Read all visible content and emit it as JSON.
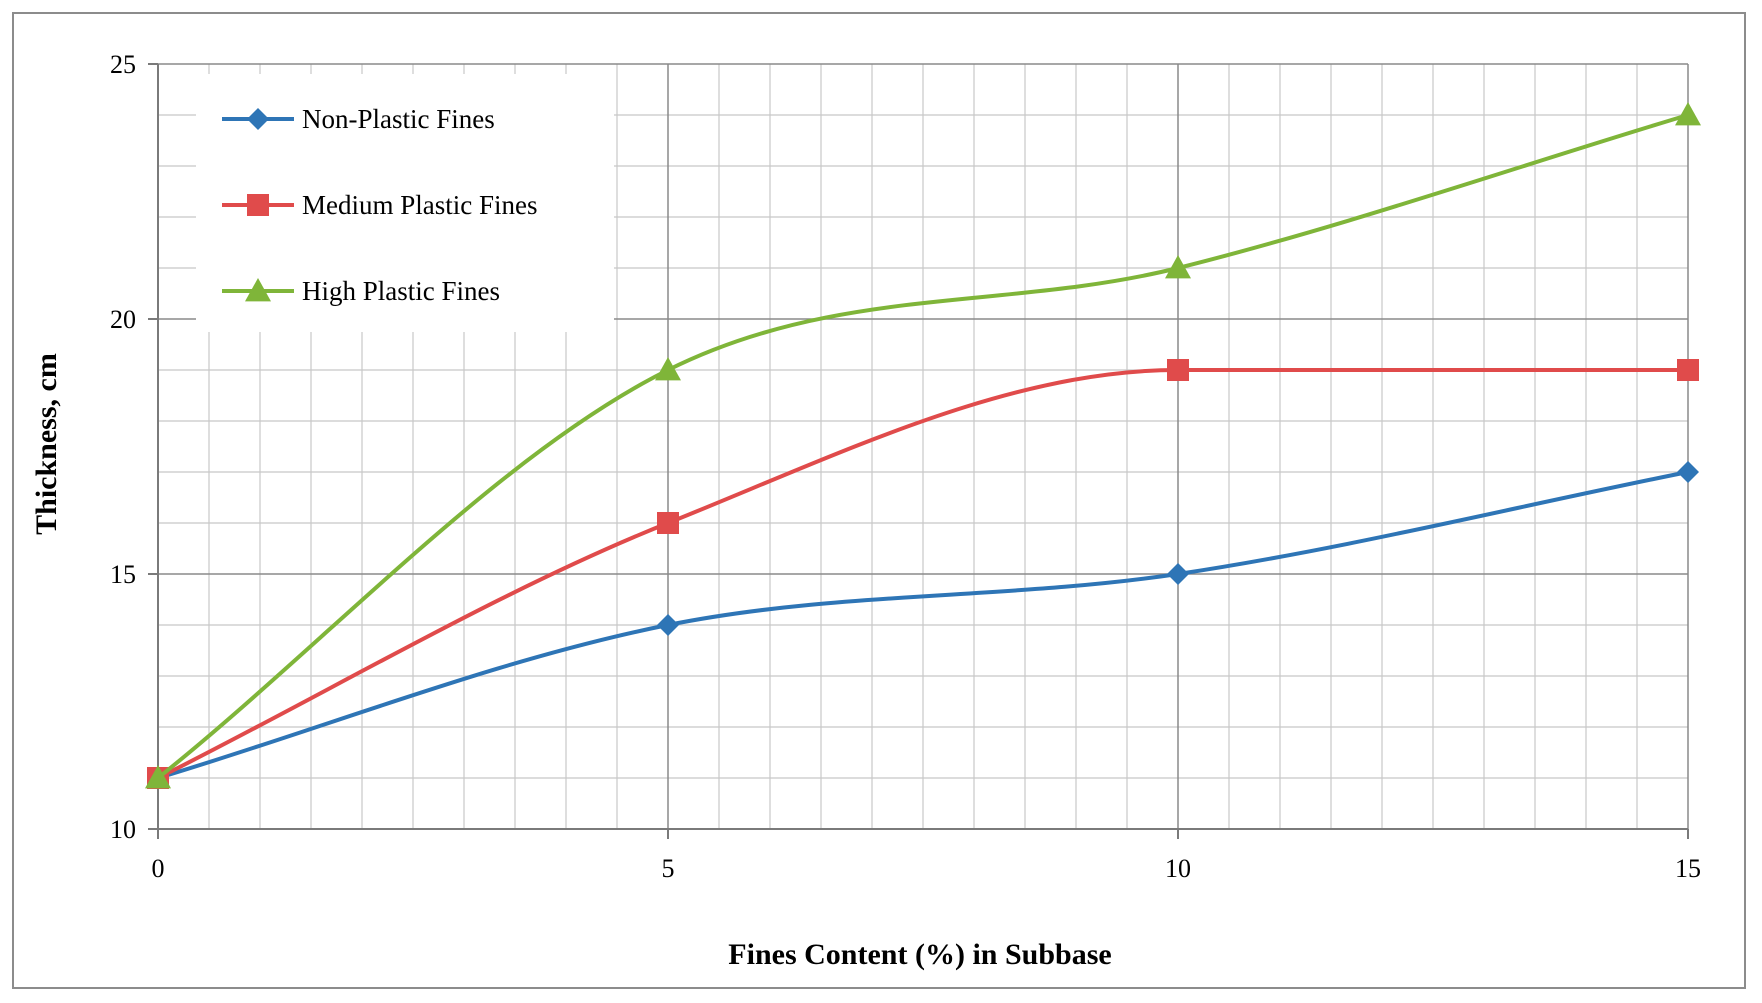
{
  "chart_data": {
    "type": "line",
    "title": "",
    "xlabel": "Fines Content (%) in Subbase",
    "ylabel": "Thickness, cm",
    "x": [
      0,
      5,
      10,
      15
    ],
    "xlim": [
      0,
      15
    ],
    "ylim": [
      10,
      25
    ],
    "x_ticks": [
      "0",
      "5",
      "10",
      "15"
    ],
    "y_ticks": [
      "10",
      "15",
      "20",
      "25"
    ],
    "grid": true,
    "smooth": true,
    "legend_position": "top-left",
    "series": [
      {
        "name": "Non-Plastic Fines",
        "values": [
          11,
          14,
          15,
          17
        ],
        "color": "#2e75b6",
        "marker": "diamond"
      },
      {
        "name": "Medium Plastic Fines",
        "values": [
          11,
          16,
          19,
          19
        ],
        "color": "#e04b4b",
        "marker": "square"
      },
      {
        "name": "High Plastic Fines",
        "values": [
          11,
          19,
          21,
          24
        ],
        "color": "#7fb539",
        "marker": "triangle"
      }
    ]
  }
}
